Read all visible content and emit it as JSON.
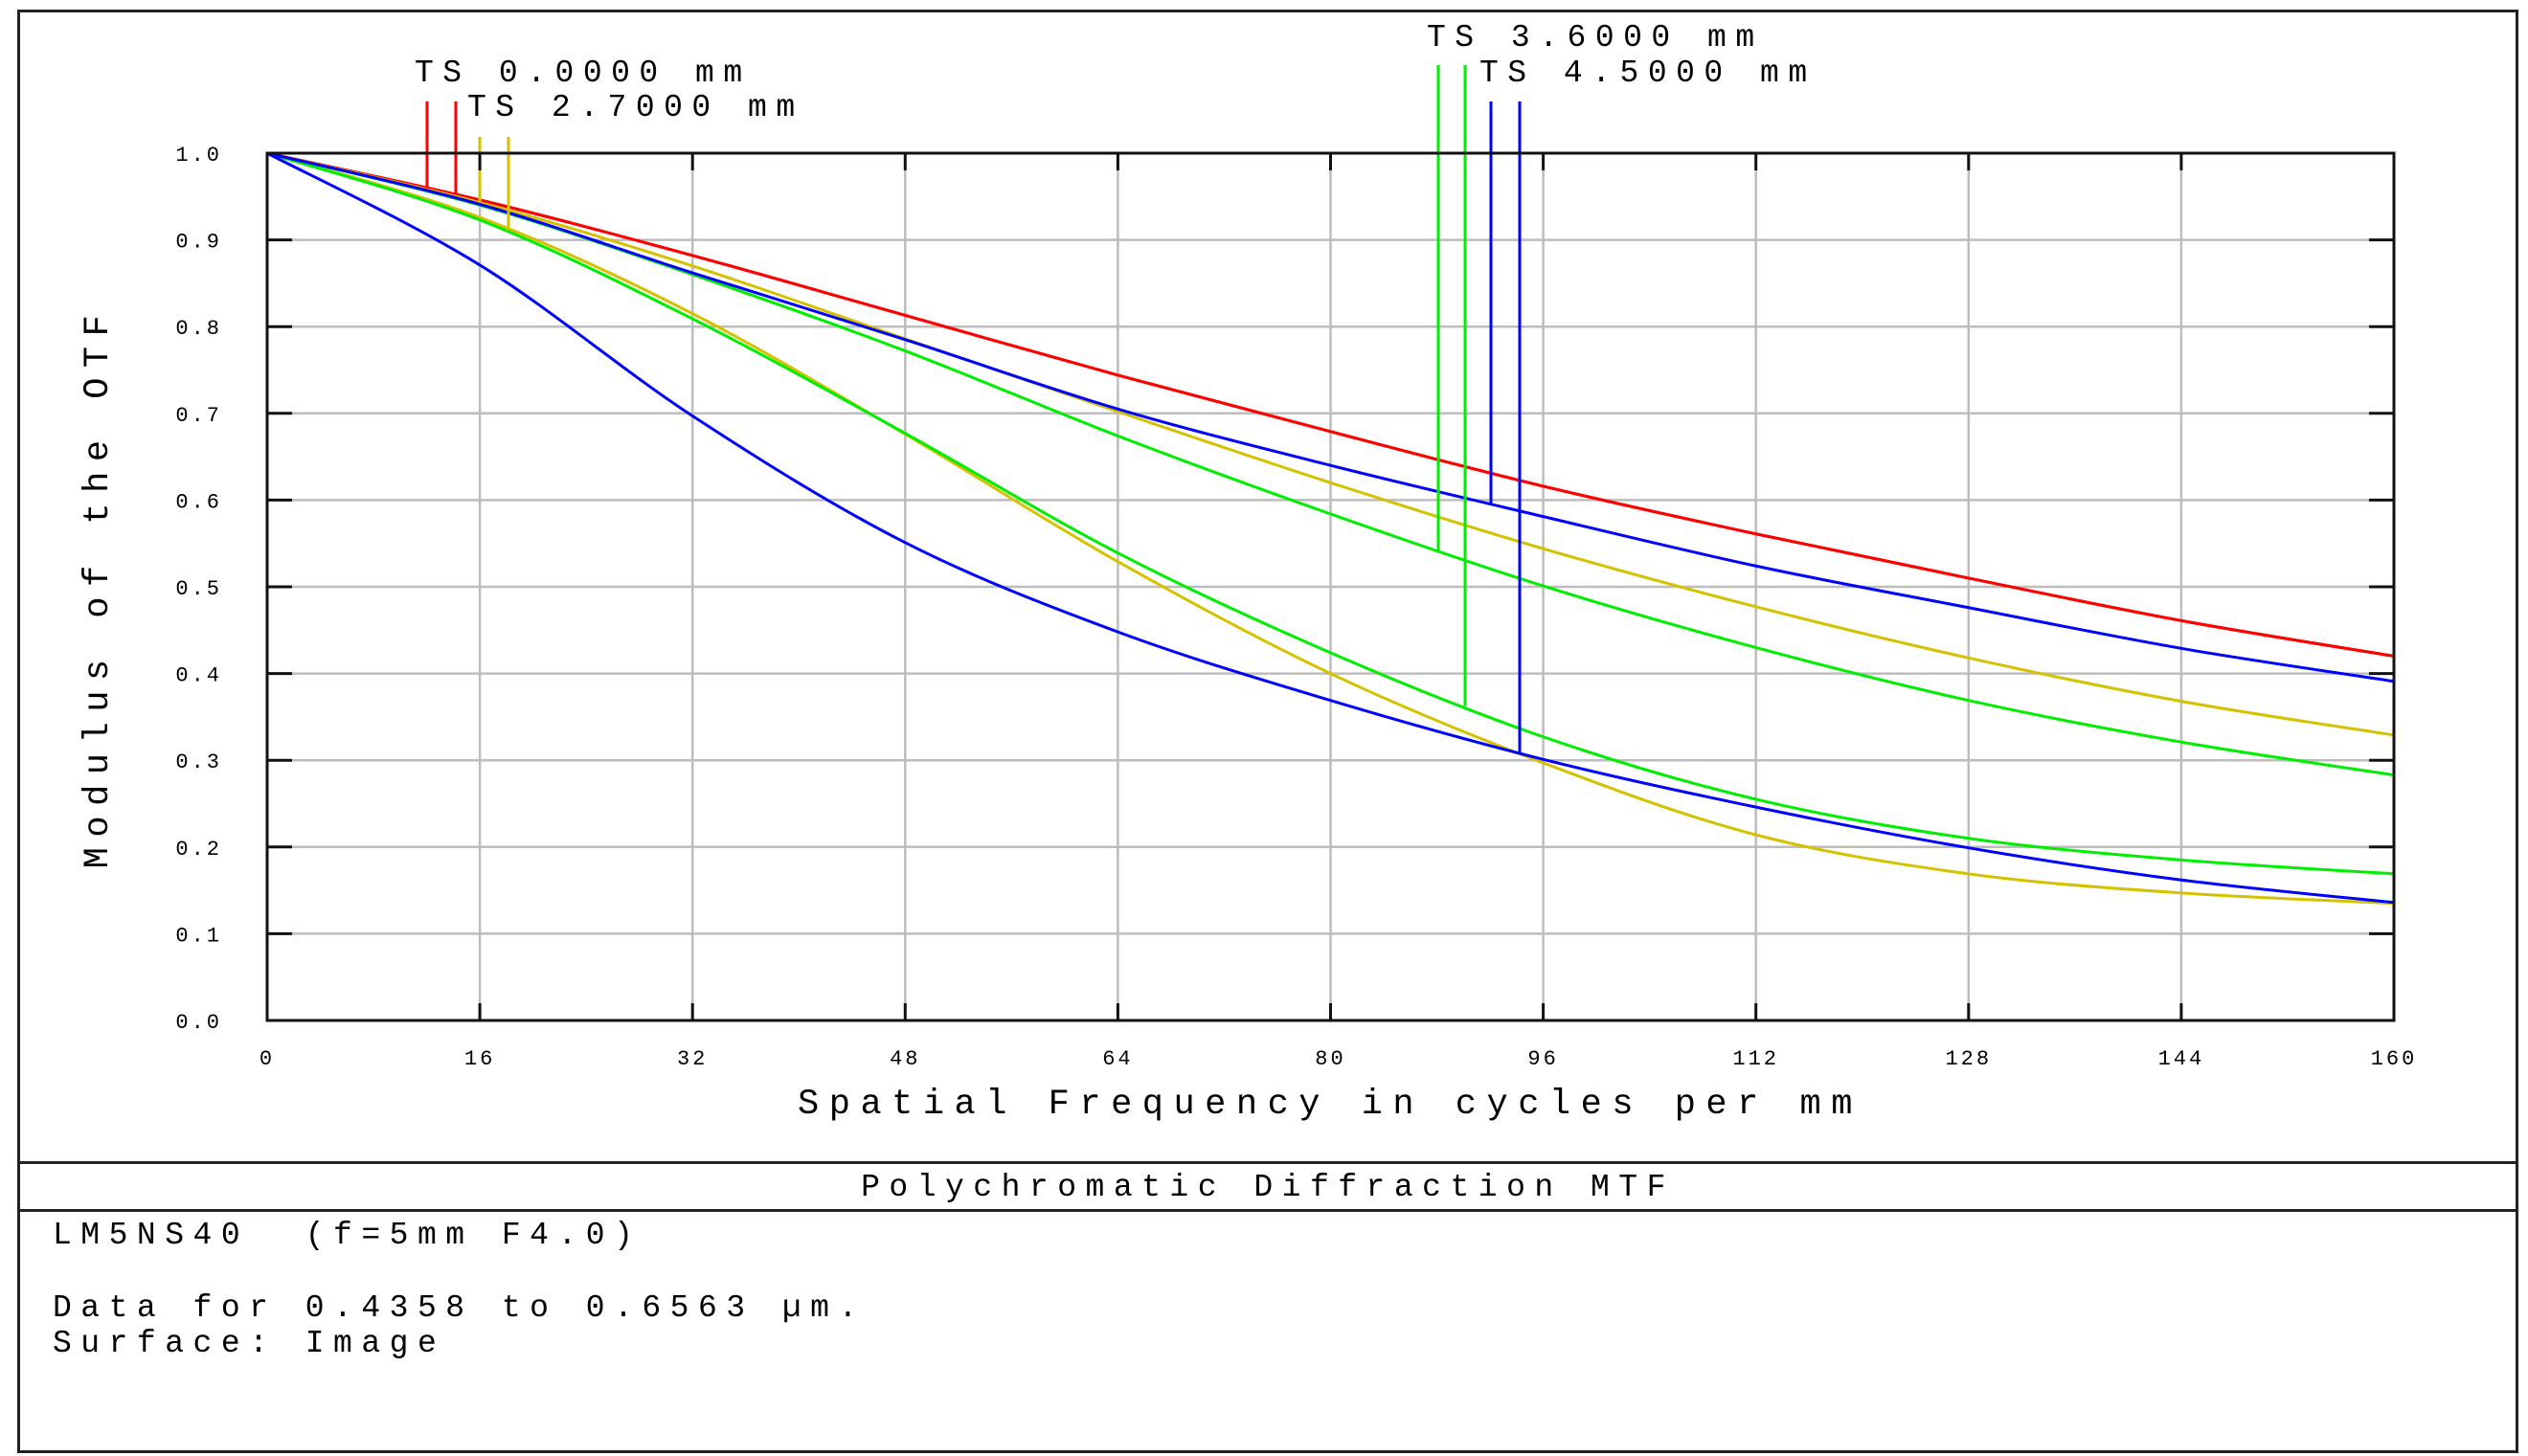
{
  "chart_data": {
    "type": "line",
    "title": "Polychromatic Diffraction MTF",
    "xlabel": "Spatial Frequency in cycles per mm",
    "ylabel": "Modulus of the OTF",
    "xlim": [
      0,
      160
    ],
    "ylim": [
      0,
      1.0
    ],
    "grid": true,
    "x_ticks": [
      "0",
      "16",
      "32",
      "48",
      "64",
      "80",
      "96",
      "112",
      "128",
      "144",
      "160"
    ],
    "y_ticks": [
      "0.0",
      "0.1",
      "0.2",
      "0.3",
      "0.4",
      "0.5",
      "0.6",
      "0.7",
      "0.8",
      "0.9",
      "1.0"
    ],
    "x": [
      0,
      16,
      32,
      48,
      64,
      80,
      96,
      112,
      128,
      144,
      160
    ],
    "series": [
      {
        "name": "TS 0.0000 mm (T)",
        "field": "0.0000 mm",
        "orientation": "T",
        "color": "#ff0000",
        "values": [
          1.0,
          0.946,
          0.882,
          0.813,
          0.744,
          0.679,
          0.616,
          0.561,
          0.51,
          0.461,
          0.42
        ]
      },
      {
        "name": "TS 0.0000 mm (S)",
        "field": "0.0000 mm",
        "orientation": "S",
        "color": "#ff0000",
        "values": [
          1.0,
          0.946,
          0.882,
          0.813,
          0.744,
          0.679,
          0.616,
          0.561,
          0.51,
          0.461,
          0.42
        ]
      },
      {
        "name": "TS 2.7000 mm (T)",
        "field": "2.7000 mm",
        "orientation": "T",
        "color": "#d4c200",
        "values": [
          1.0,
          0.943,
          0.87,
          0.786,
          0.702,
          0.62,
          0.544,
          0.477,
          0.418,
          0.368,
          0.329
        ]
      },
      {
        "name": "TS 2.7000 mm (S)",
        "field": "2.7000 mm",
        "orientation": "S",
        "color": "#d4c200",
        "values": [
          1.0,
          0.926,
          0.815,
          0.676,
          0.529,
          0.4,
          0.297,
          0.214,
          0.169,
          0.147,
          0.135
        ]
      },
      {
        "name": "TS 3.6000 mm (T)",
        "field": "3.6000 mm",
        "orientation": "T",
        "color": "#00ee00",
        "values": [
          1.0,
          0.94,
          0.86,
          0.772,
          0.674,
          0.584,
          0.501,
          0.43,
          0.369,
          0.321,
          0.283
        ]
      },
      {
        "name": "TS 3.6000 mm (S)",
        "field": "3.6000 mm",
        "orientation": "S",
        "color": "#00ee00",
        "values": [
          1.0,
          0.923,
          0.809,
          0.677,
          0.539,
          0.424,
          0.327,
          0.255,
          0.21,
          0.185,
          0.169
        ]
      },
      {
        "name": "TS 4.5000 mm (T)",
        "field": "4.5000 mm",
        "orientation": "T",
        "color": "#0000ff",
        "values": [
          1.0,
          0.941,
          0.862,
          0.785,
          0.705,
          0.64,
          0.581,
          0.524,
          0.476,
          0.429,
          0.391
        ]
      },
      {
        "name": "TS 4.5000 mm (S)",
        "field": "4.5000 mm",
        "orientation": "S",
        "color": "#0000ff",
        "values": [
          1.0,
          0.871,
          0.697,
          0.551,
          0.448,
          0.369,
          0.301,
          0.246,
          0.199,
          0.162,
          0.136
        ]
      }
    ],
    "legend": [
      {
        "label": "TS 0.0000 mm",
        "color": "#ff0000"
      },
      {
        "label": "TS 2.7000 mm",
        "color": "#d4c200"
      },
      {
        "label": "TS 3.6000 mm",
        "color": "#00ee00"
      },
      {
        "label": "TS 4.5000 mm",
        "color": "#0000ff"
      }
    ],
    "legend_position": "top, callout lines into plot"
  },
  "title_bar": {
    "title": "Polychromatic Diffraction MTF"
  },
  "info": {
    "lens": "LM5NS40  (f=5mm F4.0)",
    "wavelength_range": "Data for 0.4358 to 0.6563 µm.",
    "surface": "Surface: Image"
  }
}
